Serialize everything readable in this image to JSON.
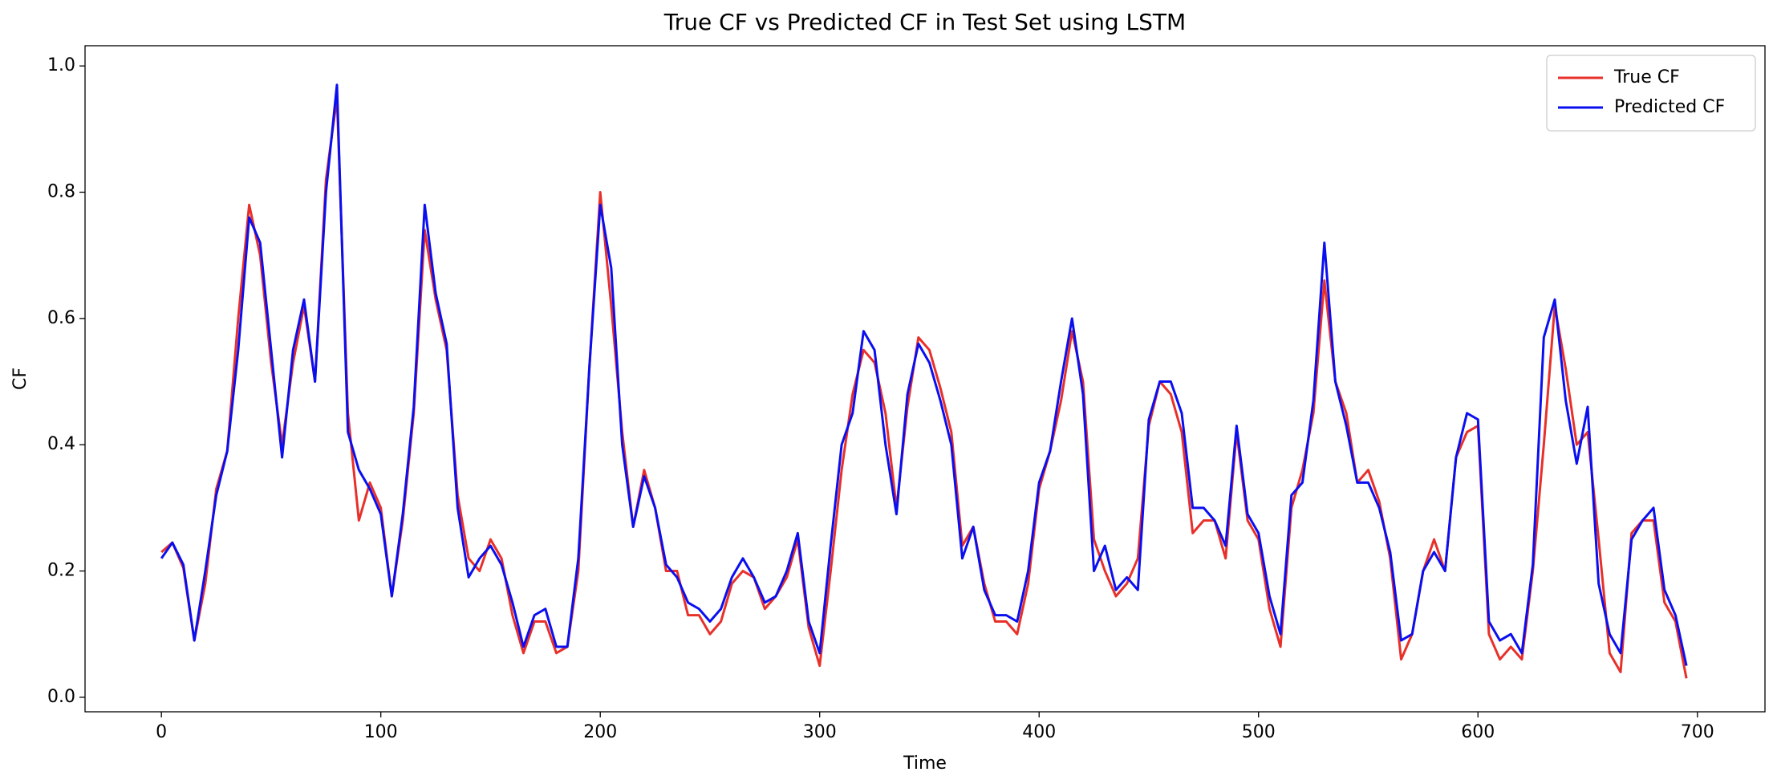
{
  "chart_data": {
    "type": "line",
    "title": "True CF vs Predicted CF in Test Set using LSTM",
    "xlabel": "Time",
    "ylabel": "CF",
    "x": [
      0,
      5,
      10,
      15,
      20,
      25,
      30,
      35,
      40,
      45,
      50,
      55,
      60,
      65,
      70,
      75,
      80,
      85,
      90,
      95,
      100,
      105,
      110,
      115,
      120,
      125,
      130,
      135,
      140,
      145,
      150,
      155,
      160,
      165,
      170,
      175,
      180,
      185,
      190,
      195,
      200,
      205,
      210,
      215,
      220,
      225,
      230,
      235,
      240,
      245,
      250,
      255,
      260,
      265,
      270,
      275,
      280,
      285,
      290,
      295,
      300,
      305,
      310,
      315,
      320,
      325,
      330,
      335,
      340,
      345,
      350,
      355,
      360,
      365,
      370,
      375,
      380,
      385,
      390,
      395,
      400,
      405,
      410,
      415,
      420,
      425,
      430,
      435,
      440,
      445,
      450,
      455,
      460,
      465,
      470,
      475,
      480,
      485,
      490,
      495,
      500,
      505,
      510,
      515,
      520,
      525,
      530,
      535,
      540,
      545,
      550,
      555,
      560,
      565,
      570,
      575,
      580,
      585,
      590,
      595,
      600,
      605,
      610,
      615,
      620,
      625,
      630,
      635,
      640,
      645,
      650,
      655,
      660,
      665,
      670,
      675,
      680,
      685,
      690,
      695
    ],
    "series": [
      {
        "name": "True CF",
        "color": "#e8302a",
        "values": [
          0.23,
          0.245,
          0.205,
          0.09,
          0.18,
          0.33,
          0.39,
          0.6,
          0.78,
          0.7,
          0.53,
          0.4,
          0.53,
          0.62,
          0.5,
          0.82,
          0.95,
          0.45,
          0.28,
          0.34,
          0.3,
          0.16,
          0.28,
          0.45,
          0.74,
          0.63,
          0.55,
          0.32,
          0.22,
          0.2,
          0.25,
          0.22,
          0.13,
          0.07,
          0.12,
          0.12,
          0.07,
          0.08,
          0.2,
          0.52,
          0.8,
          0.62,
          0.42,
          0.27,
          0.36,
          0.3,
          0.2,
          0.2,
          0.13,
          0.13,
          0.1,
          0.12,
          0.18,
          0.2,
          0.19,
          0.14,
          0.16,
          0.19,
          0.25,
          0.11,
          0.05,
          0.2,
          0.36,
          0.48,
          0.55,
          0.53,
          0.45,
          0.3,
          0.46,
          0.57,
          0.55,
          0.49,
          0.42,
          0.24,
          0.27,
          0.18,
          0.12,
          0.12,
          0.1,
          0.18,
          0.33,
          0.39,
          0.47,
          0.58,
          0.5,
          0.25,
          0.2,
          0.16,
          0.18,
          0.22,
          0.43,
          0.5,
          0.48,
          0.42,
          0.26,
          0.28,
          0.28,
          0.22,
          0.42,
          0.28,
          0.25,
          0.14,
          0.08,
          0.3,
          0.36,
          0.45,
          0.66,
          0.5,
          0.45,
          0.34,
          0.36,
          0.31,
          0.22,
          0.06,
          0.1,
          0.2,
          0.25,
          0.2,
          0.38,
          0.42,
          0.43,
          0.1,
          0.06,
          0.08,
          0.06,
          0.2,
          0.4,
          0.62,
          0.52,
          0.4,
          0.42,
          0.25,
          0.07,
          0.04,
          0.26,
          0.28,
          0.28,
          0.15,
          0.12,
          0.03
        ]
      },
      {
        "name": "Predicted CF",
        "color": "#0a0ff0",
        "values": [
          0.22,
          0.245,
          0.21,
          0.09,
          0.2,
          0.32,
          0.39,
          0.55,
          0.76,
          0.72,
          0.55,
          0.38,
          0.55,
          0.63,
          0.5,
          0.8,
          0.97,
          0.42,
          0.36,
          0.33,
          0.29,
          0.16,
          0.29,
          0.46,
          0.78,
          0.64,
          0.56,
          0.3,
          0.19,
          0.22,
          0.24,
          0.21,
          0.15,
          0.08,
          0.13,
          0.14,
          0.08,
          0.08,
          0.22,
          0.52,
          0.78,
          0.68,
          0.4,
          0.27,
          0.35,
          0.3,
          0.21,
          0.19,
          0.15,
          0.14,
          0.12,
          0.14,
          0.19,
          0.22,
          0.19,
          0.15,
          0.16,
          0.2,
          0.26,
          0.12,
          0.07,
          0.24,
          0.4,
          0.45,
          0.58,
          0.55,
          0.4,
          0.29,
          0.48,
          0.56,
          0.53,
          0.47,
          0.4,
          0.22,
          0.27,
          0.17,
          0.13,
          0.13,
          0.12,
          0.2,
          0.34,
          0.39,
          0.5,
          0.6,
          0.48,
          0.2,
          0.24,
          0.17,
          0.19,
          0.17,
          0.44,
          0.5,
          0.5,
          0.45,
          0.3,
          0.3,
          0.28,
          0.24,
          0.43,
          0.29,
          0.26,
          0.16,
          0.1,
          0.32,
          0.34,
          0.47,
          0.72,
          0.5,
          0.43,
          0.34,
          0.34,
          0.3,
          0.23,
          0.09,
          0.1,
          0.2,
          0.23,
          0.2,
          0.38,
          0.45,
          0.44,
          0.12,
          0.09,
          0.1,
          0.07,
          0.21,
          0.57,
          0.63,
          0.47,
          0.37,
          0.46,
          0.18,
          0.1,
          0.07,
          0.25,
          0.28,
          0.3,
          0.17,
          0.13,
          0.05
        ]
      }
    ],
    "xlim": [
      -34.8,
      730.8
    ],
    "ylim": [
      -0.023,
      1.032
    ],
    "xticks": [
      0,
      100,
      200,
      300,
      400,
      500,
      600,
      700
    ],
    "yticks": [
      {
        "value": 0,
        "label": "0.0"
      },
      0.2,
      0.4,
      0.6,
      0.8,
      {
        "value": 1,
        "label": "1.0"
      }
    ],
    "grid": false,
    "legend": "upper right"
  }
}
